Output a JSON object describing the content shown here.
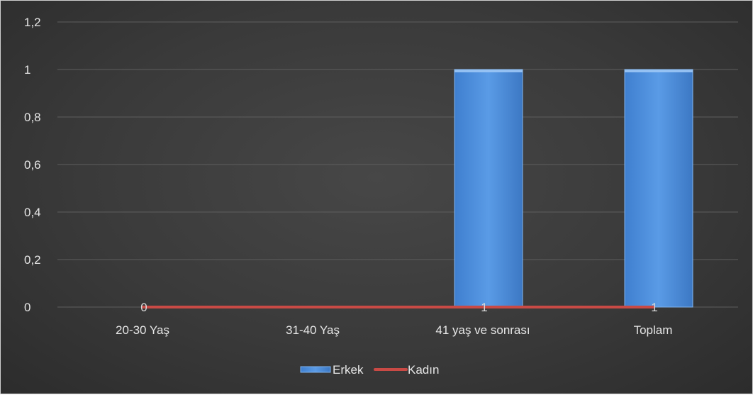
{
  "chart_data": {
    "type": "bar",
    "categories": [
      "20-30 Yaş",
      "31-40 Yaş",
      "41 yaş ve sonrası",
      "Toplam"
    ],
    "series": [
      {
        "name": "Erkek",
        "type": "bar",
        "values": [
          0,
          0,
          1,
          1
        ],
        "color": "#4a8fdb"
      },
      {
        "name": "Kadın",
        "type": "line",
        "values": [
          0,
          0,
          0,
          0
        ],
        "color": "#c94a45"
      }
    ],
    "data_labels": [
      "0",
      "",
      "1",
      "1"
    ],
    "y_ticks": [
      "0",
      "0,2",
      "0,4",
      "0,6",
      "0,8",
      "1",
      "1,2"
    ],
    "ylim": [
      0,
      1.2
    ],
    "grid": true,
    "legend_position": "bottom",
    "background": "#3c3c3c"
  }
}
